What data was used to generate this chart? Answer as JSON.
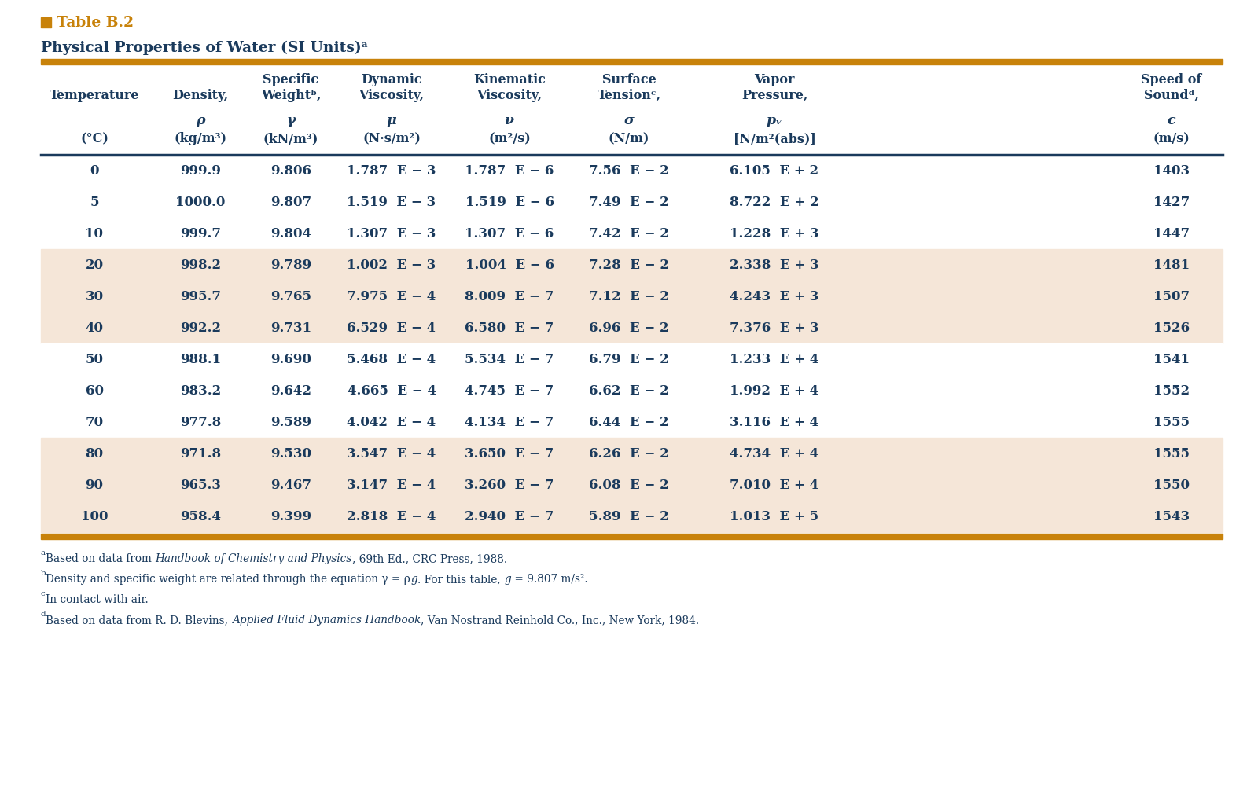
{
  "title_label": "Table B.2",
  "subtitle": "Physical Properties of Water (SI Units)",
  "title_color": "#C8820A",
  "subtitle_color": "#1a3a5c",
  "header_color": "#1a3a5c",
  "bar_color": "#C8820A",
  "row_bg_white": "#ffffff",
  "row_bg_tan": "#f5e6d8",
  "row_bg_pattern": [
    0,
    0,
    0,
    1,
    1,
    1,
    0,
    0,
    0,
    1,
    1,
    1
  ],
  "rows": [
    [
      "0",
      "999.9",
      "9.806",
      "1.787  E − 3",
      "1.787  E − 6",
      "7.56  E − 2",
      "6.105  E + 2",
      "1403"
    ],
    [
      "5",
      "1000.0",
      "9.807",
      "1.519  E − 3",
      "1.519  E − 6",
      "7.49  E − 2",
      "8.722  E + 2",
      "1427"
    ],
    [
      "10",
      "999.7",
      "9.804",
      "1.307  E − 3",
      "1.307  E − 6",
      "7.42  E − 2",
      "1.228  E + 3",
      "1447"
    ],
    [
      "20",
      "998.2",
      "9.789",
      "1.002  E − 3",
      "1.004  E − 6",
      "7.28  E − 2",
      "2.338  E + 3",
      "1481"
    ],
    [
      "30",
      "995.7",
      "9.765",
      "7.975  E − 4",
      "8.009  E − 7",
      "7.12  E − 2",
      "4.243  E + 3",
      "1507"
    ],
    [
      "40",
      "992.2",
      "9.731",
      "6.529  E − 4",
      "6.580  E − 7",
      "6.96  E − 2",
      "7.376  E + 3",
      "1526"
    ],
    [
      "50",
      "988.1",
      "9.690",
      "5.468  E − 4",
      "5.534  E − 7",
      "6.79  E − 2",
      "1.233  E + 4",
      "1541"
    ],
    [
      "60",
      "983.2",
      "9.642",
      "4.665  E − 4",
      "4.745  E − 7",
      "6.62  E − 2",
      "1.992  E + 4",
      "1552"
    ],
    [
      "70",
      "977.8",
      "9.589",
      "4.042  E − 4",
      "4.134  E − 7",
      "6.44  E − 2",
      "3.116  E + 4",
      "1555"
    ],
    [
      "80",
      "971.8",
      "9.530",
      "3.547  E − 4",
      "3.650  E − 7",
      "6.26  E − 2",
      "4.734  E + 4",
      "1555"
    ],
    [
      "90",
      "965.3",
      "9.467",
      "3.147  E − 4",
      "3.260  E − 7",
      "6.08  E − 2",
      "7.010  E + 4",
      "1550"
    ],
    [
      "100",
      "958.4",
      "9.399",
      "2.818  E − 4",
      "2.940  E − 7",
      "5.89  E − 2",
      "1.013  E + 5",
      "1543"
    ]
  ]
}
